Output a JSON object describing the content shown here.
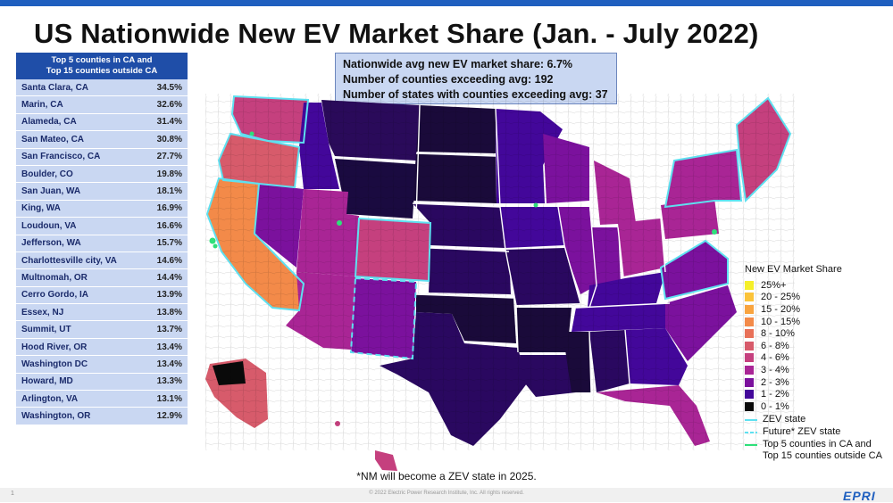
{
  "title": "US Nationwide New EV Market Share (Jan. - July 2022)",
  "table": {
    "header_line1": "Top 5 counties in CA and",
    "header_line2": "Top 15 counties outside CA",
    "rows": [
      {
        "name": "Santa Clara, CA",
        "value": "34.5%"
      },
      {
        "name": "Marin, CA",
        "value": "32.6%"
      },
      {
        "name": "Alameda, CA",
        "value": "31.4%"
      },
      {
        "name": "San Mateo, CA",
        "value": "30.8%"
      },
      {
        "name": "San Francisco, CA",
        "value": "27.7%"
      },
      {
        "name": "Boulder, CO",
        "value": "19.8%"
      },
      {
        "name": "San Juan, WA",
        "value": "18.1%"
      },
      {
        "name": "King, WA",
        "value": "16.9%"
      },
      {
        "name": "Loudoun, VA",
        "value": "16.6%"
      },
      {
        "name": "Jefferson, WA",
        "value": "15.7%"
      },
      {
        "name": "Charlottesville city, VA",
        "value": "14.6%"
      },
      {
        "name": "Multnomah, OR",
        "value": "14.4%"
      },
      {
        "name": "Cerro Gordo, IA",
        "value": "13.9%"
      },
      {
        "name": "Essex, NJ",
        "value": "13.8%"
      },
      {
        "name": "Summit, UT",
        "value": "13.7%"
      },
      {
        "name": "Hood River, OR",
        "value": "13.4%"
      },
      {
        "name": "Washington DC",
        "value": "13.4%"
      },
      {
        "name": "Howard, MD",
        "value": "13.3%"
      },
      {
        "name": "Arlington, VA",
        "value": "13.1%"
      },
      {
        "name": "Washington, OR",
        "value": "12.9%"
      }
    ]
  },
  "info": {
    "line1": "Nationwide avg new EV market share: 6.7%",
    "line2": "Number of counties exceeding avg: 192",
    "line3": "Number of states with counties exceeding avg: 37"
  },
  "legend": {
    "title": "New EV Market Share",
    "items": [
      {
        "label": "25%+",
        "color": "#f5ef2a"
      },
      {
        "label": "20 - 25%",
        "color": "#fbc33a"
      },
      {
        "label": "15 - 20%",
        "color": "#f9a43f"
      },
      {
        "label": "10 - 15%",
        "color": "#f38a49"
      },
      {
        "label": "8 - 10%",
        "color": "#e87159"
      },
      {
        "label": "6 - 8%",
        "color": "#d75b6b"
      },
      {
        "label": "4 - 6%",
        "color": "#c5407e"
      },
      {
        "label": "3 - 4%",
        "color": "#a92595"
      },
      {
        "label": "2 - 3%",
        "color": "#7b119d"
      },
      {
        "label": "1 - 2%",
        "color": "#43079a"
      },
      {
        "label": "0 - 1%",
        "color": "#0a0a0a"
      }
    ],
    "zev_label": "ZEV state",
    "future_zev_label": "Future* ZEV state",
    "top_label_line1": "Top 5 counties in CA and",
    "top_label_line2": "Top 15 counties outside CA",
    "zev_color": "#5ee0f0",
    "top_color": "#2ee07a"
  },
  "footnote": "*NM will become a ZEV state in 2025.",
  "footer": {
    "page": "1",
    "copyright": "© 2022 Electric Power Research Institute, Inc. All rights reserved.",
    "logo": "EPRI"
  }
}
